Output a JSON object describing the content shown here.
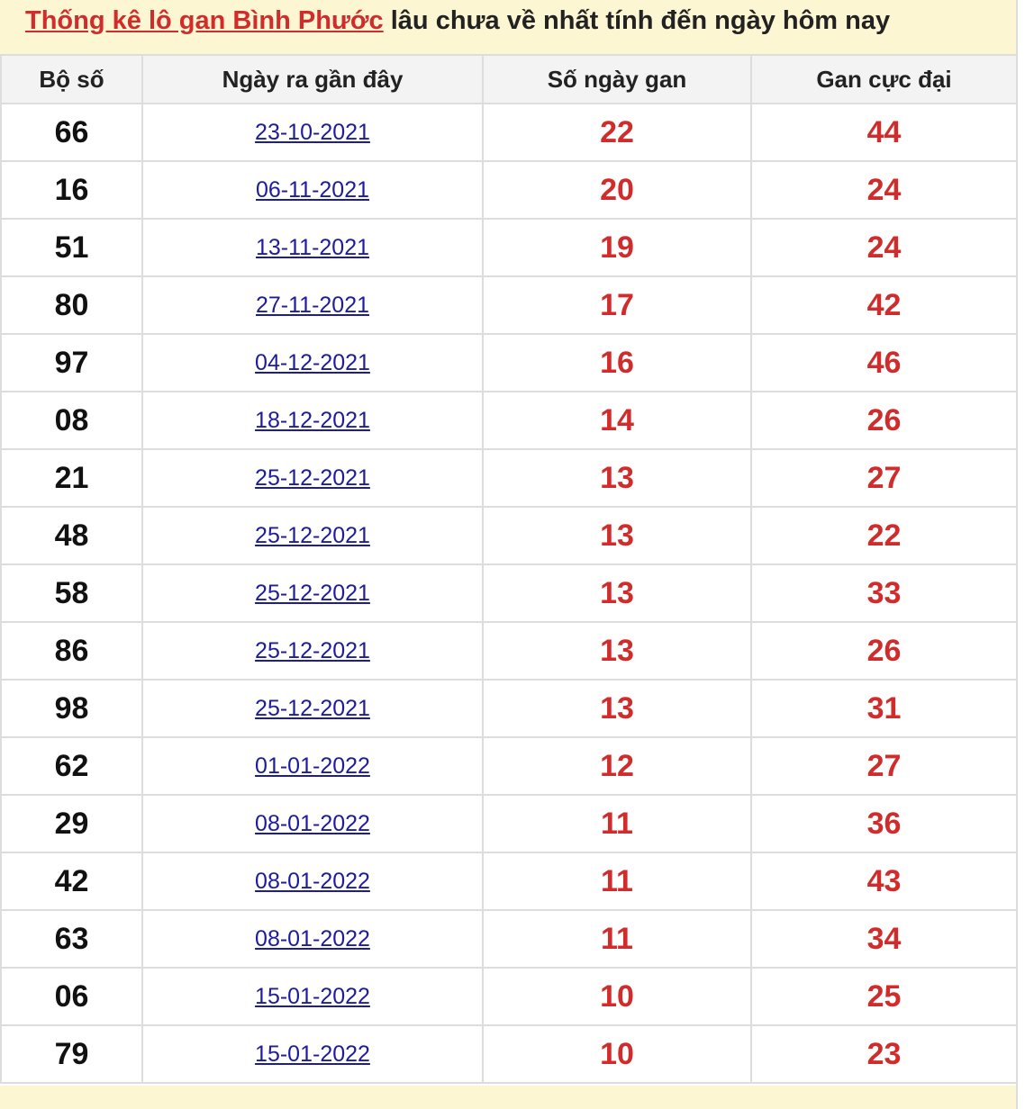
{
  "header": {
    "title_link": "Thống kê lô gan Bình Phước",
    "title_rest": "lâu chưa về nhất tính đến ngày hôm nay"
  },
  "table": {
    "columns": [
      "Bộ số",
      "Ngày ra gần đây",
      "Số ngày gan",
      "Gan cực đại"
    ],
    "rows": [
      [
        "66",
        "23-10-2021",
        22,
        44
      ],
      [
        "16",
        "06-11-2021",
        20,
        24
      ],
      [
        "51",
        "13-11-2021",
        19,
        24
      ],
      [
        "80",
        "27-11-2021",
        17,
        42
      ],
      [
        "97",
        "04-12-2021",
        16,
        46
      ],
      [
        "08",
        "18-12-2021",
        14,
        26
      ],
      [
        "21",
        "25-12-2021",
        13,
        27
      ],
      [
        "48",
        "25-12-2021",
        13,
        22
      ],
      [
        "58",
        "25-12-2021",
        13,
        33
      ],
      [
        "86",
        "25-12-2021",
        13,
        26
      ],
      [
        "98",
        "25-12-2021",
        13,
        31
      ],
      [
        "62",
        "01-01-2022",
        12,
        27
      ],
      [
        "29",
        "08-01-2022",
        11,
        36
      ],
      [
        "42",
        "08-01-2022",
        11,
        43
      ],
      [
        "63",
        "08-01-2022",
        11,
        34
      ],
      [
        "06",
        "15-01-2022",
        10,
        25
      ],
      [
        "79",
        "15-01-2022",
        10,
        23
      ]
    ]
  }
}
